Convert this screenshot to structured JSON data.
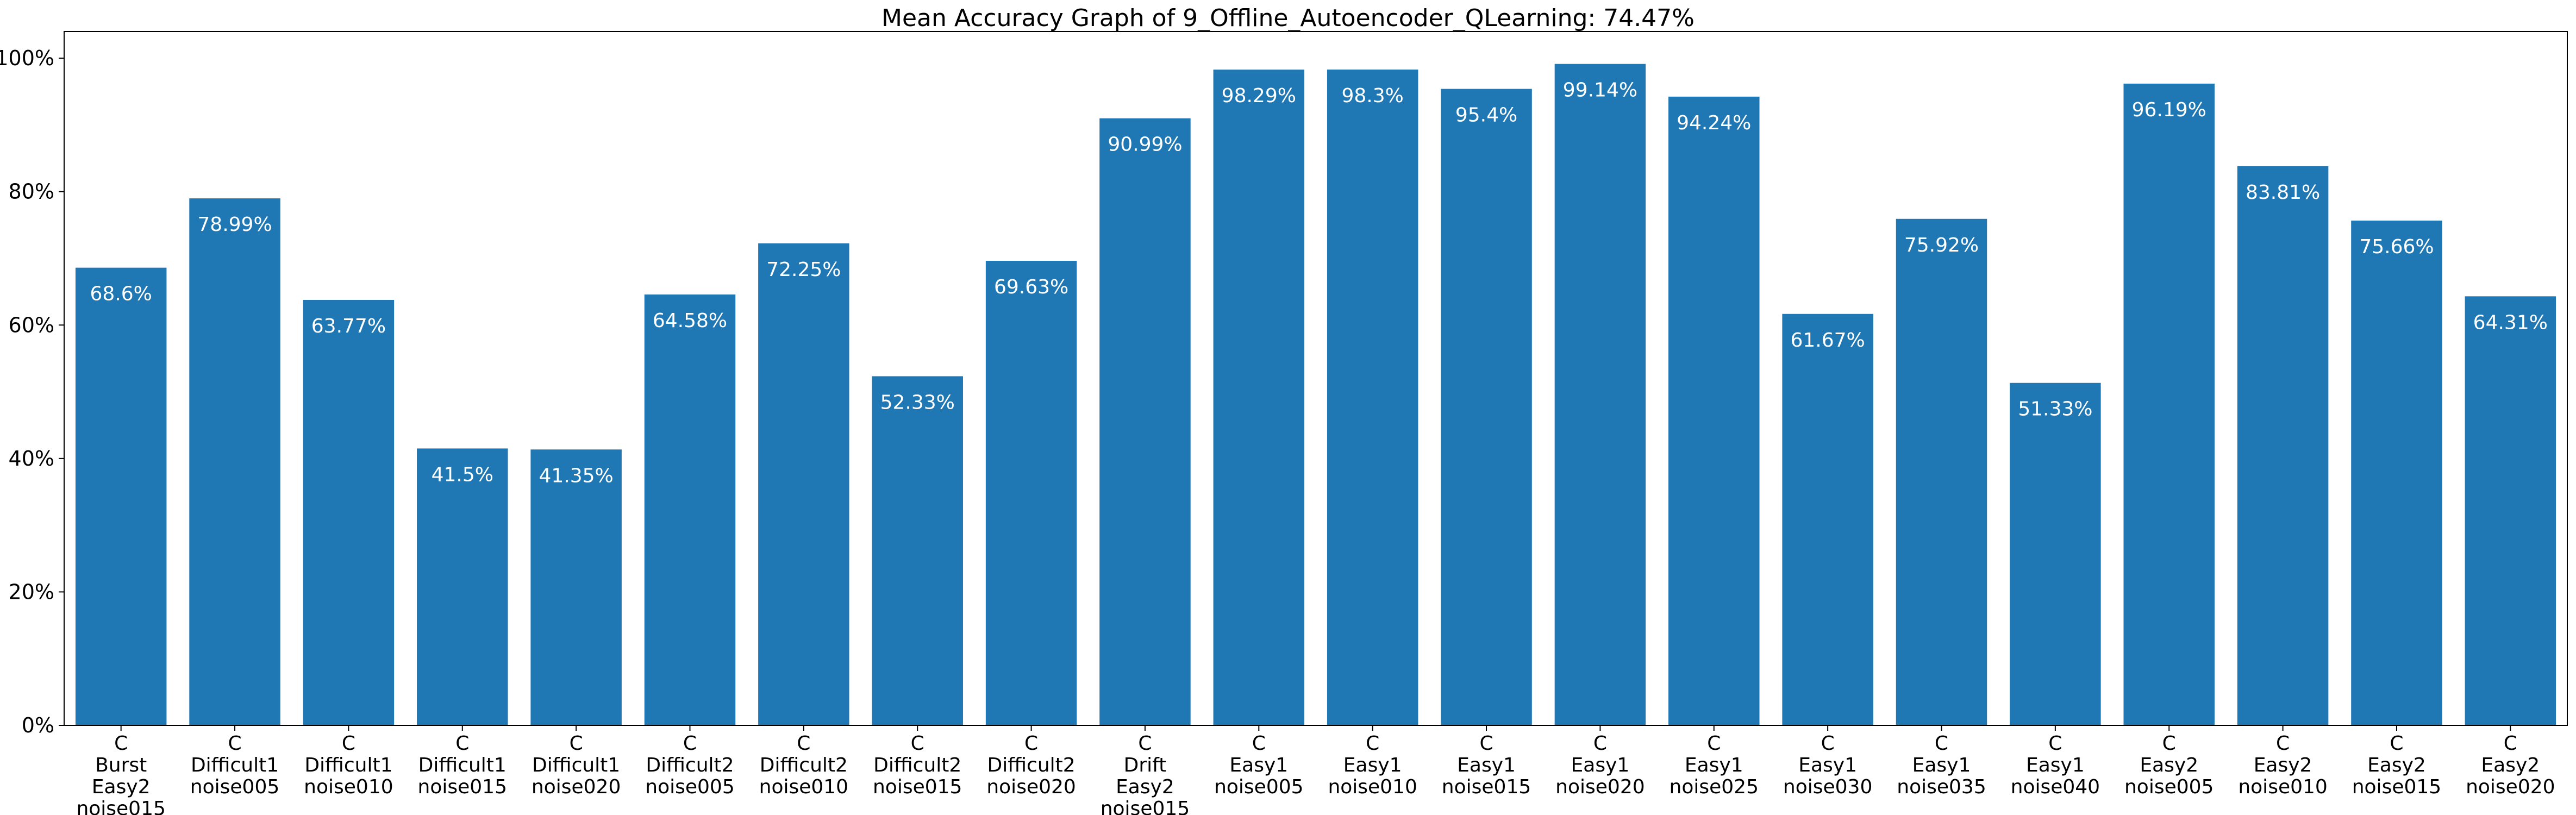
{
  "chart_data": {
    "type": "bar",
    "title": "Mean Accuracy Graph of 9_Offline_Autoencoder_QLearning: 74.47%",
    "xlabel": "",
    "ylabel": "",
    "ylim": [
      0,
      104
    ],
    "grid": false,
    "bar_color": "#1f77b4",
    "y_ticks": [
      {
        "value": 0,
        "label": "0%"
      },
      {
        "value": 20,
        "label": "20%"
      },
      {
        "value": 40,
        "label": "40%"
      },
      {
        "value": 60,
        "label": "60%"
      },
      {
        "value": 80,
        "label": "80%"
      },
      {
        "value": 100,
        "label": "100%"
      }
    ],
    "categories": [
      [
        "C",
        "Burst",
        "Easy2",
        "noise015"
      ],
      [
        "C",
        "Difficult1",
        "noise005"
      ],
      [
        "C",
        "Difficult1",
        "noise010"
      ],
      [
        "C",
        "Difficult1",
        "noise015"
      ],
      [
        "C",
        "Difficult1",
        "noise020"
      ],
      [
        "C",
        "Difficult2",
        "noise005"
      ],
      [
        "C",
        "Difficult2",
        "noise010"
      ],
      [
        "C",
        "Difficult2",
        "noise015"
      ],
      [
        "C",
        "Difficult2",
        "noise020"
      ],
      [
        "C",
        "Drift",
        "Easy2",
        "noise015"
      ],
      [
        "C",
        "Easy1",
        "noise005"
      ],
      [
        "C",
        "Easy1",
        "noise010"
      ],
      [
        "C",
        "Easy1",
        "noise015"
      ],
      [
        "C",
        "Easy1",
        "noise020"
      ],
      [
        "C",
        "Easy1",
        "noise025"
      ],
      [
        "C",
        "Easy1",
        "noise030"
      ],
      [
        "C",
        "Easy1",
        "noise035"
      ],
      [
        "C",
        "Easy1",
        "noise040"
      ],
      [
        "C",
        "Easy2",
        "noise005"
      ],
      [
        "C",
        "Easy2",
        "noise010"
      ],
      [
        "C",
        "Easy2",
        "noise015"
      ],
      [
        "C",
        "Easy2",
        "noise020"
      ]
    ],
    "values": [
      68.6,
      78.99,
      63.77,
      41.5,
      41.35,
      64.58,
      72.25,
      52.33,
      69.63,
      90.99,
      98.29,
      98.3,
      95.4,
      99.14,
      94.24,
      61.67,
      75.92,
      51.33,
      96.19,
      83.81,
      75.66,
      64.31
    ],
    "data_labels": [
      "68.6%",
      "78.99%",
      "63.77%",
      "41.5%",
      "41.35%",
      "64.58%",
      "72.25%",
      "52.33%",
      "69.63%",
      "90.99%",
      "98.29%",
      "98.3%",
      "95.4%",
      "99.14%",
      "94.24%",
      "61.67%",
      "75.92%",
      "51.33%",
      "96.19%",
      "83.81%",
      "75.66%",
      "64.31%"
    ]
  }
}
